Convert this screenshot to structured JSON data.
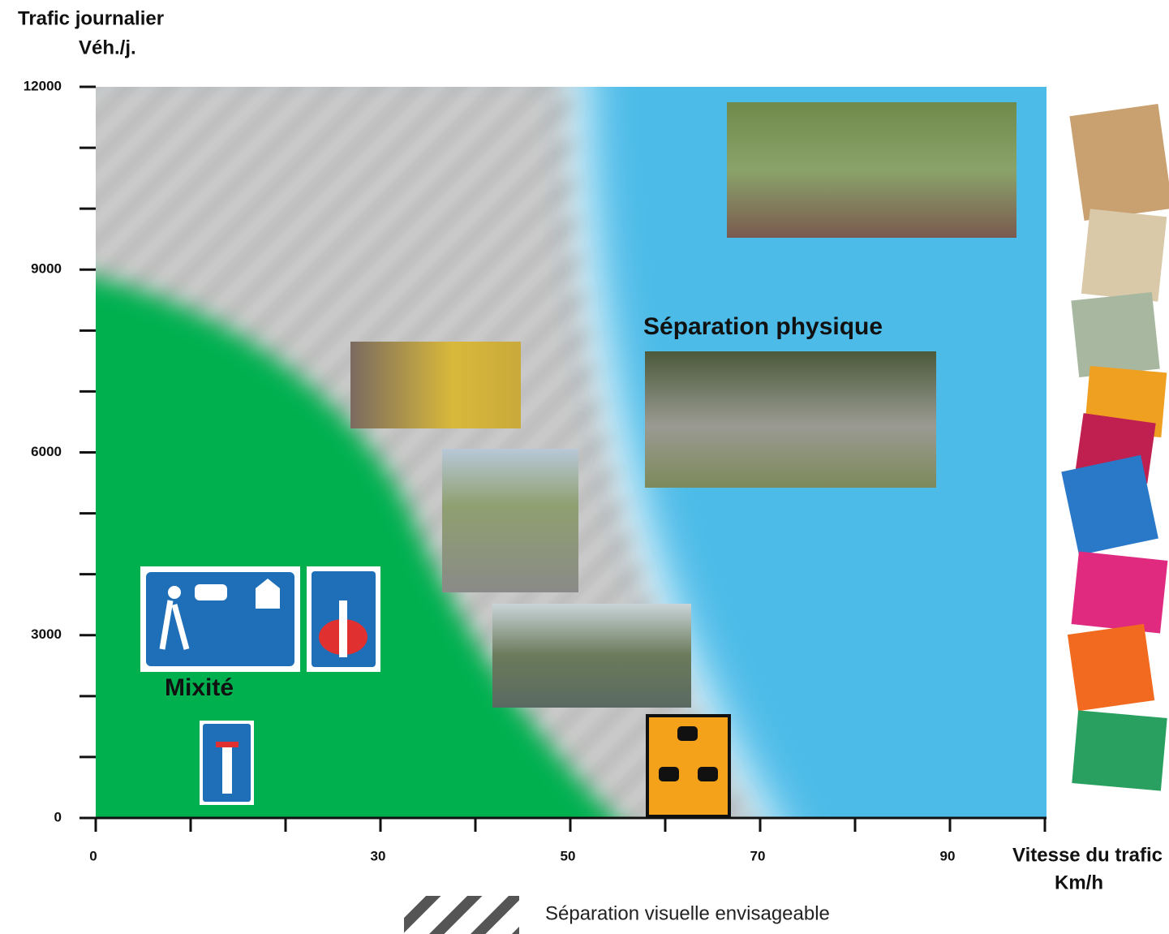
{
  "chart_data": {
    "type": "zones",
    "ylabel": "Trafic journalier",
    "yunit": "Véh./j.",
    "xlabel": "Vitesse du trafic",
    "xunit": "Km/h",
    "xlim": [
      0,
      100
    ],
    "ylim": [
      0,
      12000
    ],
    "xticks": [
      0,
      30,
      50,
      70,
      90
    ],
    "xminor": [
      10,
      20,
      40,
      60,
      80,
      100
    ],
    "yticks": [
      0,
      3000,
      6000,
      9000,
      12000
    ],
    "yminor": [
      1000,
      2000,
      4000,
      5000,
      7000,
      8000,
      10000,
      11000
    ],
    "annotations": [
      "Séparation physique",
      "Mixité"
    ],
    "legend": "Séparation visuelle envisageable"
  }
}
